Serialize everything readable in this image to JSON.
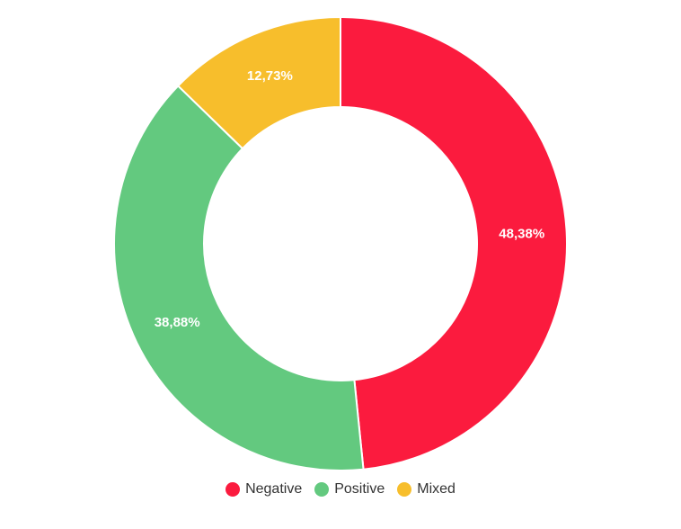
{
  "chart_data": {
    "type": "pie",
    "variant": "donut",
    "slices": [
      {
        "name": "Negative",
        "value": 48.38,
        "label": "48,38%",
        "color": "#fb1b3e"
      },
      {
        "name": "Positive",
        "value": 38.88,
        "label": "38,88%",
        "color": "#63c97f"
      },
      {
        "name": "Mixed",
        "value": 12.73,
        "label": "12,73%",
        "color": "#f7be2c"
      }
    ],
    "start_angle_deg": 270,
    "direction": "clockwise",
    "legend_position": "bottom-center"
  }
}
